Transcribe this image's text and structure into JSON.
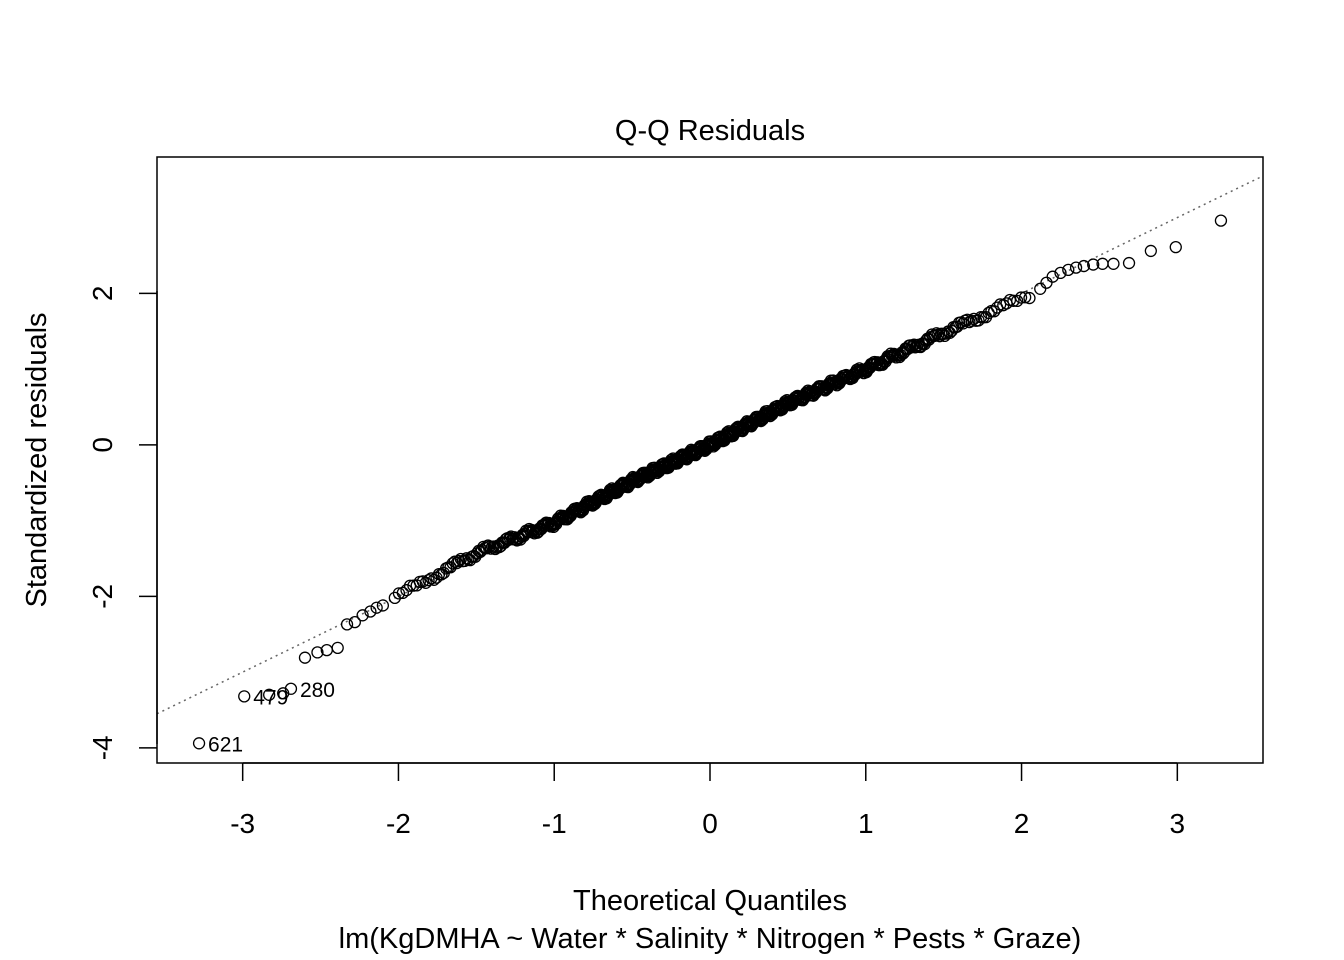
{
  "chart_data": {
    "type": "scatter",
    "title": "Q-Q Residuals",
    "xlabel": "Theoretical Quantiles",
    "ylabel": "Standardized residuals",
    "subtitle": "lm(KgDMHA ~ Water * Salinity * Nitrogen * Pests * Graze)",
    "xlim": [
      -3.55,
      3.55
    ],
    "ylim": [
      -4.2,
      3.8
    ],
    "x_ticks": [
      -3,
      -2,
      -1,
      0,
      1,
      2,
      3
    ],
    "x_tick_labels": [
      "-3",
      "-2",
      "-1",
      "0",
      "1",
      "2",
      "3"
    ],
    "y_ticks": [
      -4,
      -2,
      0,
      2
    ],
    "y_tick_labels": [
      "-4",
      "-2",
      "0",
      "2"
    ],
    "grid": false,
    "reference_line": {
      "style": "dotted",
      "color": "#666666",
      "slope": 1.0,
      "intercept": 0.0
    },
    "point_count": 720,
    "theoretical_quantiles_sorted": true,
    "tail_points": {
      "lower": [
        [
          -3.28,
          -3.94
        ],
        [
          -2.99,
          -3.32
        ],
        [
          -2.83,
          -3.3
        ],
        [
          -2.74,
          -3.28
        ],
        [
          -2.69,
          -3.22
        ],
        [
          -2.6,
          -2.81
        ],
        [
          -2.52,
          -2.74
        ],
        [
          -2.46,
          -2.71
        ],
        [
          -2.39,
          -2.68
        ],
        [
          -2.33,
          -2.37
        ],
        [
          -2.28,
          -2.34
        ],
        [
          -2.23,
          -2.25
        ],
        [
          -2.18,
          -2.2
        ],
        [
          -2.14,
          -2.15
        ],
        [
          -2.1,
          -2.12
        ]
      ],
      "upper": [
        [
          3.28,
          2.96
        ],
        [
          2.99,
          2.61
        ],
        [
          2.83,
          2.56
        ],
        [
          2.69,
          2.4
        ],
        [
          2.59,
          2.39
        ],
        [
          2.52,
          2.39
        ],
        [
          2.46,
          2.38
        ],
        [
          2.4,
          2.36
        ],
        [
          2.35,
          2.34
        ],
        [
          2.3,
          2.31
        ],
        [
          2.25,
          2.27
        ],
        [
          2.2,
          2.22
        ],
        [
          2.16,
          2.14
        ],
        [
          2.12,
          2.06
        ]
      ]
    },
    "body_trend": {
      "description_free_points": [
        [
          -2.05,
          -2.05
        ],
        [
          -1.5,
          -1.43
        ],
        [
          -1.0,
          -1.03
        ],
        [
          -0.5,
          -0.48
        ],
        [
          0.0,
          0.0
        ],
        [
          0.5,
          0.55
        ],
        [
          1.0,
          1.0
        ],
        [
          1.5,
          1.48
        ],
        [
          2.05,
          1.98
        ]
      ]
    },
    "labeled_points": [
      {
        "label": "621",
        "x": -3.28,
        "y": -3.94
      },
      {
        "label": "479",
        "x": -2.99,
        "y": -3.32
      },
      {
        "label": "280",
        "x": -2.69,
        "y": -3.22
      }
    ]
  }
}
